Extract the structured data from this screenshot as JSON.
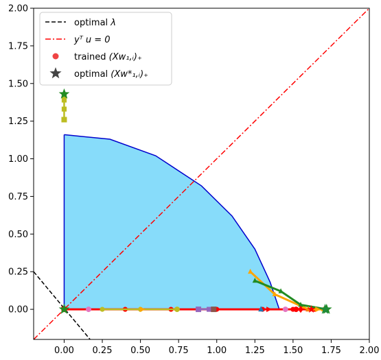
{
  "chart_data": {
    "type": "scatter",
    "title": "",
    "xlabel": "",
    "ylabel": "",
    "xlim": [
      -0.2,
      2.0
    ],
    "ylim": [
      -0.2,
      2.0
    ],
    "xticks": [
      0.0,
      0.25,
      0.5,
      0.75,
      1.0,
      1.25,
      1.5,
      1.75,
      2.0
    ],
    "yticks": [
      0.0,
      0.25,
      0.5,
      0.75,
      1.0,
      1.25,
      1.5,
      1.75,
      2.0
    ],
    "xtick_labels": [
      "0.00",
      "0.25",
      "0.50",
      "0.75",
      "1.00",
      "1.25",
      "1.50",
      "1.75",
      "2.00"
    ],
    "ytick_labels": [
      "0.00",
      "0.25",
      "0.50",
      "0.75",
      "1.00",
      "1.25",
      "1.50",
      "1.75",
      "2.00"
    ],
    "grid": false,
    "legend": {
      "placement": "top-left",
      "entries": [
        {
          "label_pre": "optimal ",
          "label_math": "λ",
          "style": "dashed-line",
          "color": "#000000"
        },
        {
          "label_pre": "",
          "label_math": "y^T u = 0",
          "style": "dashdot-line",
          "color": "#ff0000"
        },
        {
          "label_pre": "trained ",
          "label_math": "(Xw_{1,i})_+",
          "style": "dot",
          "color": "#ef4444"
        },
        {
          "label_pre": "optimal ",
          "label_math": "(Xw*_{1,i})_+",
          "style": "star",
          "color": "#444444"
        }
      ]
    },
    "feasible_region": {
      "fill": "#87dcfa",
      "edge": "#0000cc",
      "boundary": [
        [
          0,
          1.16
        ],
        [
          0.3,
          1.13
        ],
        [
          0.6,
          1.02
        ],
        [
          0.9,
          0.82
        ],
        [
          1.1,
          0.62
        ],
        [
          1.25,
          0.4
        ],
        [
          1.35,
          0.18
        ],
        [
          1.41,
          0.0
        ],
        [
          0,
          0.0
        ]
      ]
    },
    "lines": [
      {
        "name": "optimal λ",
        "style": "dashed",
        "color": "#000000",
        "points": [
          [
            -0.2,
            0.25
          ],
          [
            0.17,
            -0.2
          ]
        ]
      },
      {
        "name": "yTu=0",
        "style": "dashdot",
        "color": "#ff0000",
        "points": [
          [
            -0.2,
            -0.2
          ],
          [
            2.0,
            2.0
          ]
        ]
      }
    ],
    "trajectories": [
      {
        "color": "#ff0000",
        "marker": "circle",
        "width": 3.0,
        "points": [
          [
            0,
            0
          ],
          [
            0.16,
            0
          ],
          [
            0.4,
            0
          ],
          [
            0.7,
            0
          ],
          [
            1.0,
            0
          ],
          [
            1.3,
            0
          ],
          [
            1.5,
            0
          ],
          [
            1.64,
            0
          ]
        ]
      },
      {
        "color": "#ffa500",
        "marker": "triangle",
        "width": 3.0,
        "points": [
          [
            1.22,
            0.25
          ],
          [
            1.38,
            0.1
          ],
          [
            1.6,
            0.0
          ],
          [
            1.7,
            0.0
          ]
        ]
      },
      {
        "color": "#228b22",
        "marker": "triangle",
        "width": 3.0,
        "points": [
          [
            1.25,
            0.19
          ],
          [
            1.42,
            0.12
          ],
          [
            1.55,
            0.03
          ],
          [
            1.72,
            0.0
          ]
        ]
      },
      {
        "color": "#bcbd22",
        "marker": "square",
        "width": 2.5,
        "points": [
          [
            0,
            1.26
          ],
          [
            0,
            1.33
          ],
          [
            0,
            1.39
          ],
          [
            0,
            1.42
          ]
        ]
      },
      {
        "color": "#bcbd22",
        "marker": "circle",
        "width": 2.5,
        "points": [
          [
            0.25,
            0
          ],
          [
            0.5,
            0
          ],
          [
            0.74,
            0
          ]
        ]
      },
      {
        "color": "#9467bd",
        "marker": "square",
        "width": 2.5,
        "points": [
          [
            0.88,
            0
          ],
          [
            0.95,
            0
          ],
          [
            0.98,
            0
          ]
        ]
      }
    ],
    "scatter_points": [
      {
        "x": 0.0,
        "y": 0.0,
        "color": "#ff0000",
        "marker": "square"
      },
      {
        "x": 0.16,
        "y": 0.0,
        "color": "#e377c2",
        "marker": "circle"
      },
      {
        "x": 0.51,
        "y": 0.0,
        "color": "#ffa500",
        "marker": "triangle-right"
      },
      {
        "x": 0.74,
        "y": 0.0,
        "color": "#bcbd22",
        "marker": "circle"
      },
      {
        "x": 0.88,
        "y": 0.0,
        "color": "#9467bd",
        "marker": "square"
      },
      {
        "x": 0.98,
        "y": 0.0,
        "color": "#8c564b",
        "marker": "square"
      },
      {
        "x": 1.29,
        "y": 0.0,
        "color": "#1f77b4",
        "marker": "triangle"
      },
      {
        "x": 1.34,
        "y": 0.0,
        "color": "#ff0000",
        "marker": "triangle-right"
      },
      {
        "x": 1.45,
        "y": 0.0,
        "color": "#e377c2",
        "marker": "circle"
      },
      {
        "x": 1.52,
        "y": 0.0,
        "color": "#ff0000",
        "marker": "circle"
      },
      {
        "x": 1.55,
        "y": 0.0,
        "color": "#ff0000",
        "marker": "diamond"
      },
      {
        "x": 1.6,
        "y": 0.0,
        "color": "#ff7f0e",
        "marker": "triangle"
      },
      {
        "x": 1.62,
        "y": 0.0,
        "color": "#ff0000",
        "marker": "star"
      },
      {
        "x": 1.66,
        "y": 0.0,
        "color": "#ffa500",
        "marker": "triangle-right"
      },
      {
        "x": 0.0,
        "y": 1.26,
        "color": "#bcbd22",
        "marker": "square"
      }
    ],
    "optimal_points": [
      {
        "x": 1.72,
        "y": 0.0,
        "color": "#228b22"
      },
      {
        "x": 1.71,
        "y": 0.0,
        "color": "#1f8b3a"
      },
      {
        "x": 0.0,
        "y": 1.43,
        "color": "#228b22"
      },
      {
        "x": 0.0,
        "y": 0.0,
        "color": "#228b22"
      }
    ]
  }
}
